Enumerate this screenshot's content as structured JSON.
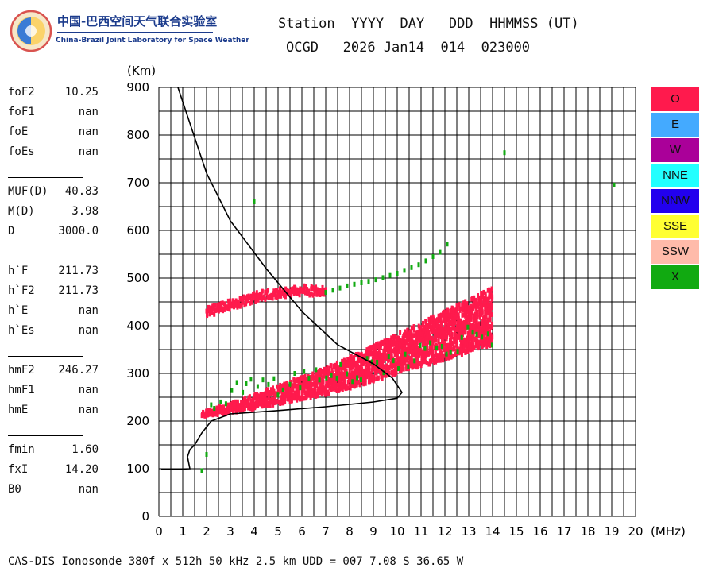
{
  "logo": {
    "cn_text": "中国-巴西空间天气联合实验室",
    "en_text": "China-Brazil Joint Laboratory for Space Weather"
  },
  "header": {
    "line1": "Station  YYYY  DAY   DDD  HHMMSS (UT)",
    "line2": "OCGD   2026 Jan14  014  023000"
  },
  "params": {
    "group1": [
      {
        "label": "foF2",
        "value": "10.25"
      },
      {
        "label": "foF1",
        "value": "nan"
      },
      {
        "label": "foE",
        "value": "nan"
      },
      {
        "label": "foEs",
        "value": "nan"
      }
    ],
    "group2": [
      {
        "label": "MUF(D)",
        "value": "40.83"
      },
      {
        "label": "M(D)",
        "value": "3.98"
      },
      {
        "label": "D",
        "value": "3000.0"
      }
    ],
    "group3": [
      {
        "label": "h`F",
        "value": "211.73"
      },
      {
        "label": "h`F2",
        "value": "211.73"
      },
      {
        "label": "h`E",
        "value": "nan"
      },
      {
        "label": "h`Es",
        "value": "nan"
      }
    ],
    "group4": [
      {
        "label": "hmF2",
        "value": "246.27"
      },
      {
        "label": "hmF1",
        "value": "nan"
      },
      {
        "label": "hmE",
        "value": "nan"
      }
    ],
    "group5": [
      {
        "label": "fmin",
        "value": "1.60"
      },
      {
        "label": "fxI",
        "value": "14.20"
      },
      {
        "label": "B0",
        "value": "nan"
      }
    ]
  },
  "legend": [
    {
      "label": "O",
      "color": "#ff1a4d"
    },
    {
      "label": "E",
      "color": "#44aaff"
    },
    {
      "label": "W",
      "color": "#aa0099"
    },
    {
      "label": "NNE",
      "color": "#22ffff"
    },
    {
      "label": "NNW",
      "color": "#2200ee"
    },
    {
      "label": "SSE",
      "color": "#ffff33"
    },
    {
      "label": "SSW",
      "color": "#ffbbaa"
    },
    {
      "label": "X",
      "color": "#11aa11"
    }
  ],
  "footer": "CAS-DIS Ionosonde 380f x 512h 50 kHz 2.5 km UDD = 007 7.08 S 36.65 W",
  "chart_data": {
    "type": "scatter",
    "xlabel": "(MHz)",
    "ylabel": "(Km)",
    "xlim": [
      0,
      20
    ],
    "ylim": [
      0,
      900
    ],
    "x_ticks": [
      0,
      1,
      2,
      3,
      4,
      5,
      6,
      7,
      8,
      9,
      10,
      11,
      12,
      13,
      14,
      15,
      16,
      17,
      18,
      19,
      20
    ],
    "y_ticks": [
      0,
      100,
      200,
      300,
      400,
      500,
      600,
      700,
      800,
      900
    ],
    "grid": true,
    "legend_position": "right",
    "o_trace": [
      [
        1.8,
        215
      ],
      [
        3,
        222
      ],
      [
        4,
        232
      ],
      [
        5,
        242
      ],
      [
        6,
        252
      ],
      [
        7,
        262
      ],
      [
        8,
        275
      ],
      [
        9,
        290
      ],
      [
        10,
        305
      ],
      [
        11,
        320
      ],
      [
        12,
        335
      ],
      [
        13,
        350
      ],
      [
        13.5,
        360
      ],
      [
        14,
        365
      ]
    ],
    "o_multihop": [
      [
        2,
        425
      ],
      [
        3,
        440
      ],
      [
        4,
        455
      ],
      [
        5,
        465
      ],
      [
        6,
        470
      ],
      [
        7,
        468
      ]
    ],
    "x_trace": [
      [
        2.1,
        240
      ],
      [
        4,
        260
      ],
      [
        6,
        278
      ],
      [
        8,
        298
      ],
      [
        10,
        320
      ],
      [
        12,
        350
      ],
      [
        13.5,
        380
      ],
      [
        14.1,
        370
      ]
    ],
    "x_multihop": [
      [
        7,
        470
      ],
      [
        8,
        485
      ],
      [
        9,
        495
      ],
      [
        10,
        510
      ],
      [
        11,
        530
      ],
      [
        12,
        560
      ],
      [
        12.4,
        605
      ]
    ],
    "x_sparse": [
      [
        4,
        660
      ],
      [
        14.5,
        763
      ],
      [
        19.1,
        695
      ],
      [
        2,
        130
      ],
      [
        1.8,
        96
      ]
    ],
    "profile": [
      [
        0.1,
        99
      ],
      [
        0.8,
        99
      ],
      [
        1.3,
        100
      ],
      [
        1.2,
        125
      ],
      [
        1.3,
        140
      ],
      [
        1.5,
        150
      ],
      [
        1.8,
        175
      ],
      [
        2.2,
        200
      ],
      [
        3,
        215
      ],
      [
        5,
        222
      ],
      [
        7,
        230
      ],
      [
        9,
        240
      ],
      [
        10,
        248
      ],
      [
        10.2,
        260
      ],
      [
        9.8,
        290
      ],
      [
        9,
        320
      ],
      [
        7.5,
        360
      ],
      [
        6,
        430
      ],
      [
        4.5,
        520
      ],
      [
        3,
        620
      ],
      [
        2,
        720
      ],
      [
        1.2,
        840
      ],
      [
        0.8,
        900
      ]
    ]
  }
}
